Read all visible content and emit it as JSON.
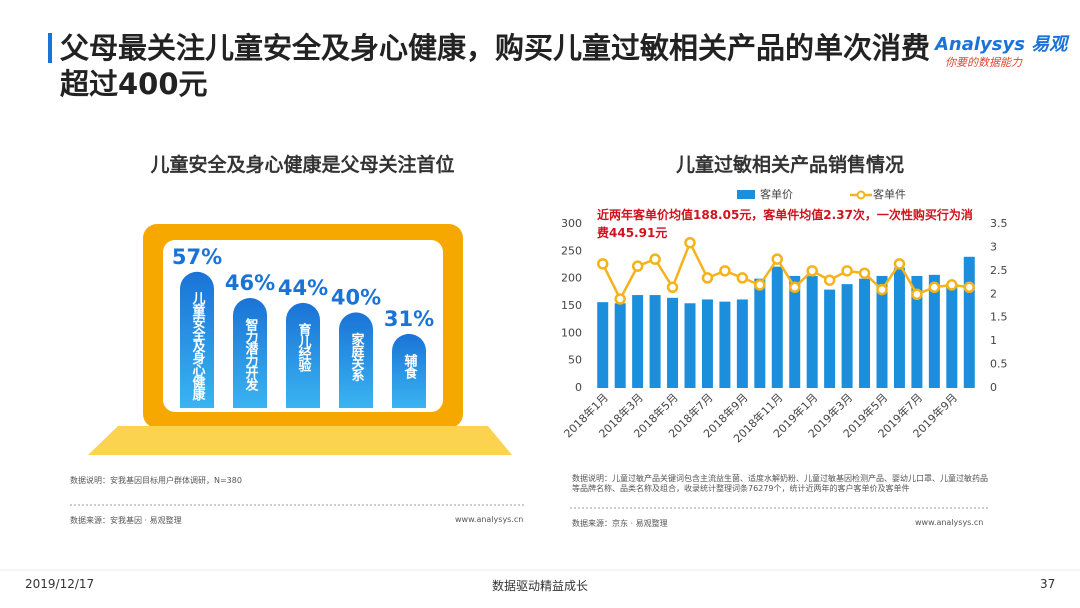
{
  "header": {
    "title": "父母最关注儿童安全及身心健康，购买儿童过敏相关产品的单次消费超过400元",
    "brand": "Analysys",
    "brand_cn": "易观",
    "tagline": "你要的数据能力"
  },
  "chart_data": [
    {
      "type": "bar",
      "title": "儿童安全及身心健康是父母关注首位",
      "categories": [
        "儿童安全及身心健康",
        "智力潜力开发",
        "育儿经验",
        "家庭关系",
        "辅食"
      ],
      "values": [
        57,
        46,
        44,
        40,
        31
      ],
      "value_labels": [
        "57%",
        "46%",
        "44%",
        "40%",
        "31%"
      ],
      "color": "#1a73d6",
      "note": "数据说明：安我基因目标用户群体调研，N=380",
      "source": "数据来源：安我基因 · 易观整理",
      "website": "www.analysys.cn"
    },
    {
      "type": "combo",
      "title": "儿童过敏相关产品销售情况",
      "categories": [
        "2018年1月",
        null,
        "2018年3月",
        null,
        "2018年5月",
        null,
        "2018年7月",
        null,
        "2018年9月",
        null,
        "2018年11月",
        null,
        "2019年1月",
        null,
        "2019年3月",
        null,
        "2019年5月",
        null,
        "2019年7月",
        null,
        "2019年9月",
        null
      ],
      "series": [
        {
          "name": "客单价",
          "type": "bar",
          "color": "#1c8fdc",
          "values": [
            157,
            155,
            170,
            170,
            165,
            155,
            162,
            158,
            162,
            200,
            222,
            205,
            205,
            180,
            190,
            200,
            205,
            220,
            205,
            207,
            190,
            240
          ]
        },
        {
          "name": "客单件",
          "type": "line",
          "axis": "y2",
          "color": "#f5b21b",
          "values": [
            2.65,
            1.9,
            2.6,
            2.75,
            2.15,
            3.1,
            2.35,
            2.5,
            2.35,
            2.2,
            2.75,
            2.15,
            2.5,
            2.3,
            2.5,
            2.45,
            2.1,
            2.65,
            2.0,
            2.15,
            2.2,
            2.15
          ]
        }
      ],
      "ylim": [
        0,
        300
      ],
      "yticks": [
        0,
        50,
        100,
        150,
        200,
        250,
        300
      ],
      "y2lim": [
        0,
        3.5
      ],
      "y2ticks": [
        0,
        0.5,
        1,
        1.5,
        2,
        2.5,
        3,
        3.5
      ],
      "legend": "top",
      "annotation": "近两年客单价均值188.05元，客单件均值2.37次，一次性购买行为消费445.91元",
      "note": "数据说明：儿童过敏产品关键词包含主流益生菌、适度水解奶粉、儿童过敏基因检测产品、婴幼儿口罩、儿童过敏药品等品牌名称、品类名称及组合，收录统计整理词条76279个，统计近两年的客户客单价及客单件",
      "source": "数据来源：京东 · 易观整理",
      "website": "www.analysys.cn"
    }
  ],
  "footer": {
    "date": "2019/12/17",
    "slogan": "数据驱动精益成长",
    "page": "37"
  }
}
